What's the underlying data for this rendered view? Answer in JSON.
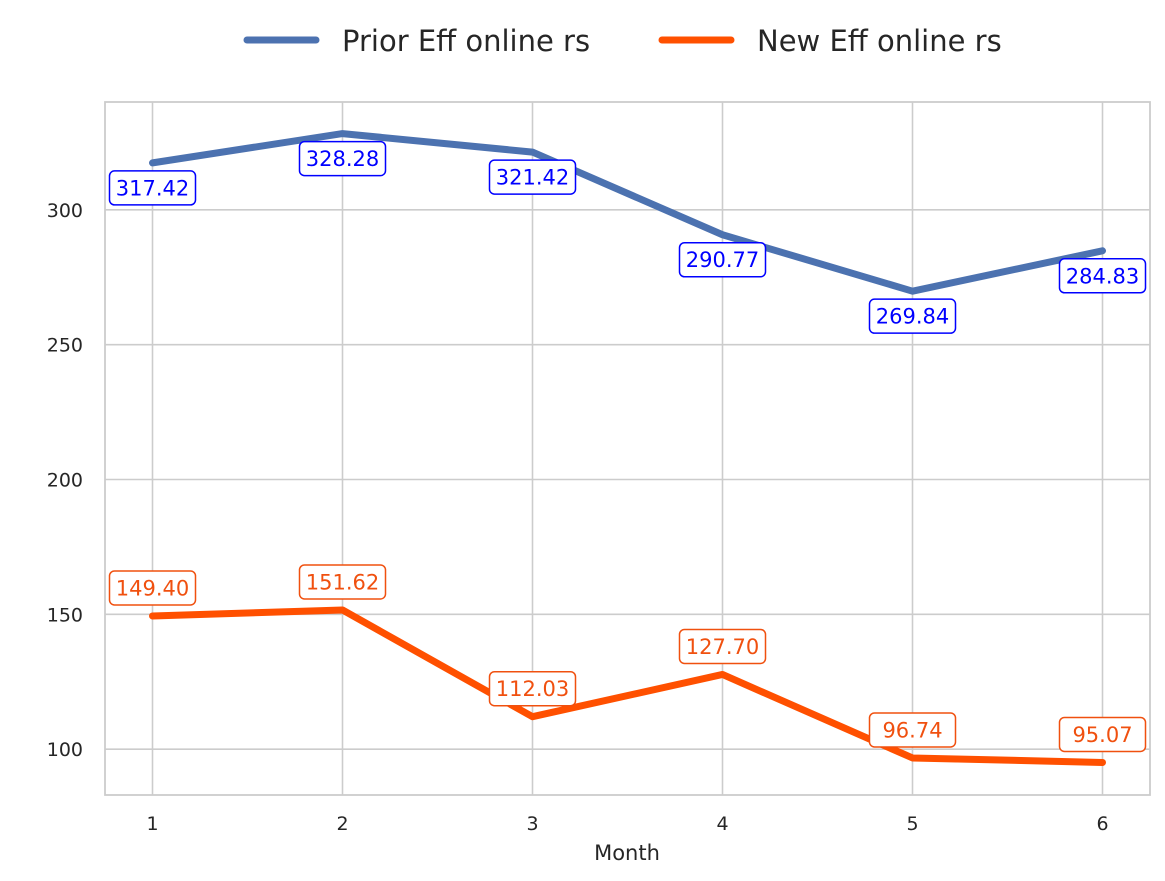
{
  "chart_data": {
    "type": "line",
    "title": "",
    "xlabel": "Month",
    "ylabel": "",
    "x": [
      1,
      2,
      3,
      4,
      5,
      6
    ],
    "x_tick_labels": [
      "1",
      "2",
      "3",
      "4",
      "5",
      "6"
    ],
    "y_ticks": [
      100,
      150,
      200,
      250,
      300
    ],
    "y_tick_labels": [
      "100",
      "150",
      "200",
      "250",
      "300"
    ],
    "xlim": [
      0.75,
      6.25
    ],
    "ylim": [
      83,
      340
    ],
    "grid": true,
    "legend_position": "top-center",
    "series": [
      {
        "name": "Prior Eff online rs",
        "color": "#4c72b0",
        "label_color": "#0000ff",
        "label_position": "below",
        "values": [
          317.42,
          328.28,
          321.42,
          290.77,
          269.84,
          284.83
        ],
        "labels": [
          "317.42",
          "328.28",
          "321.42",
          "290.77",
          "269.84",
          "284.83"
        ]
      },
      {
        "name": "New Eff online rs",
        "color": "#ff5000",
        "label_color": "#f0500f",
        "label_position": "above",
        "values": [
          149.4,
          151.62,
          112.03,
          127.7,
          96.74,
          95.07
        ],
        "labels": [
          "149.40",
          "151.62",
          "112.03",
          "127.70",
          "96.74",
          "95.07"
        ]
      }
    ]
  }
}
